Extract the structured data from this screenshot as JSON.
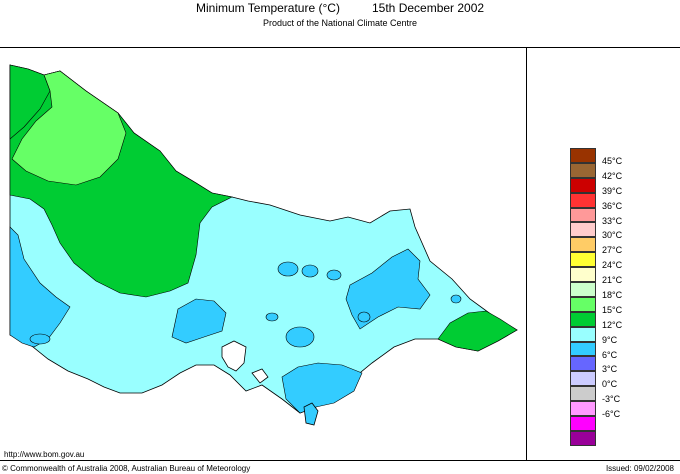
{
  "header": {
    "title": "Minimum Temperature (°C)",
    "date": "15th December 2002",
    "subtitle": "Product of the National Climate Centre"
  },
  "legend": {
    "items": [
      {
        "label": "45°C",
        "color": "#993300"
      },
      {
        "label": "42°C",
        "color": "#996633"
      },
      {
        "label": "39°C",
        "color": "#cc0000"
      },
      {
        "label": "36°C",
        "color": "#ff3333"
      },
      {
        "label": "33°C",
        "color": "#ff9999"
      },
      {
        "label": "30°C",
        "color": "#ffcccc"
      },
      {
        "label": "27°C",
        "color": "#ffcc66"
      },
      {
        "label": "24°C",
        "color": "#ffff33"
      },
      {
        "label": "21°C",
        "color": "#ffffcc"
      },
      {
        "label": "18°C",
        "color": "#ccffcc"
      },
      {
        "label": "15°C",
        "color": "#66ff66"
      },
      {
        "label": "12°C",
        "color": "#00cc33"
      },
      {
        "label": "9°C",
        "color": "#99ffff"
      },
      {
        "label": "6°C",
        "color": "#33ccff"
      },
      {
        "label": "3°C",
        "color": "#6666ff"
      },
      {
        "label": "0°C",
        "color": "#ccccff"
      },
      {
        "label": "-3°C",
        "color": "#cccccc"
      },
      {
        "label": "-6°C",
        "color": "#ff99ff"
      },
      {
        "label": "",
        "color": "#ff00ff"
      },
      {
        "label": "",
        "color": "#990099"
      }
    ]
  },
  "footer": {
    "url": "http://www.bom.gov.au",
    "copyright": "© Commonwealth of Australia 2008, Australian Bureau of Meteorology",
    "issued": "Issued: 09/02/2008"
  },
  "colors": {
    "zone_green_dark": "#00cc33",
    "zone_green_light": "#66ff66",
    "zone_cyan": "#99ffff",
    "zone_blue": "#33ccff"
  }
}
